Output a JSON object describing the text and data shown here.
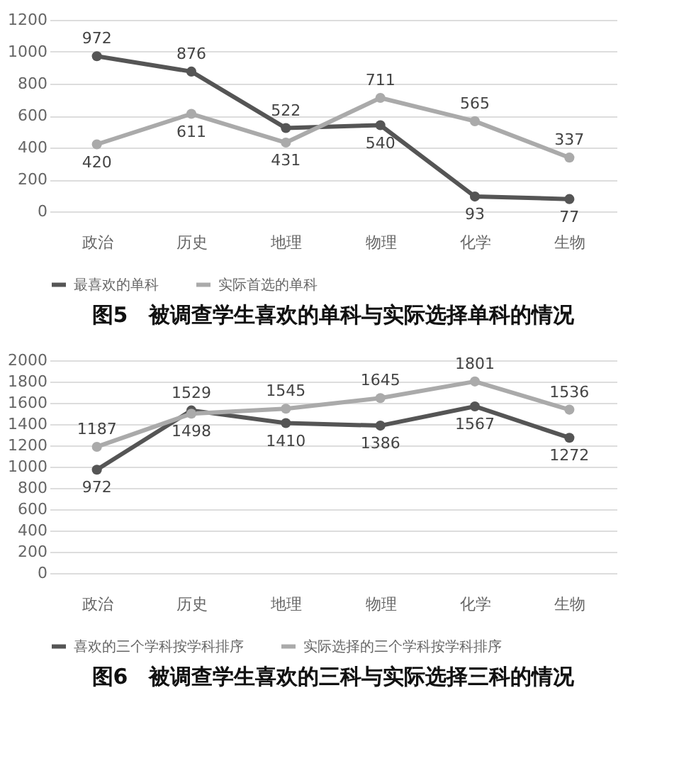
{
  "chart_data": [
    {
      "type": "line",
      "title": "图5　被调查学生喜欢的单科与实际选择单科的情况",
      "categories": [
        "政治",
        "历史",
        "地理",
        "物理",
        "化学",
        "生物"
      ],
      "series": [
        {
          "name": "最喜欢的单科",
          "color": "#555555",
          "values": [
            972,
            876,
            522,
            540,
            93,
            77
          ]
        },
        {
          "name": "实际首选的单科",
          "color": "#aaaaaa",
          "values": [
            420,
            611,
            431,
            711,
            565,
            337
          ]
        }
      ],
      "ylim": [
        0,
        1200
      ],
      "yticks": [
        0,
        200,
        400,
        600,
        800,
        1000,
        1200
      ],
      "grid": "y",
      "legend": "bottom",
      "marker": "circle",
      "data_labels": true
    },
    {
      "type": "line",
      "title": "图6　被调查学生喜欢的三科与实际选择三科的情况",
      "categories": [
        "政治",
        "历史",
        "地理",
        "物理",
        "化学",
        "生物"
      ],
      "series": [
        {
          "name": "喜欢的三个学科按学科排序",
          "color": "#555555",
          "values": [
            972,
            1529,
            1410,
            1386,
            1567,
            1272
          ]
        },
        {
          "name": "实际选择的三个学科按学科排序",
          "color": "#aaaaaa",
          "values": [
            1187,
            1498,
            1545,
            1645,
            1801,
            1536
          ]
        }
      ],
      "ylim": [
        0,
        2000
      ],
      "yticks": [
        0,
        200,
        400,
        600,
        800,
        1000,
        1200,
        1400,
        1600,
        1800,
        2000
      ],
      "grid": "y",
      "legend": "bottom",
      "marker": "circle",
      "data_labels": true
    }
  ]
}
